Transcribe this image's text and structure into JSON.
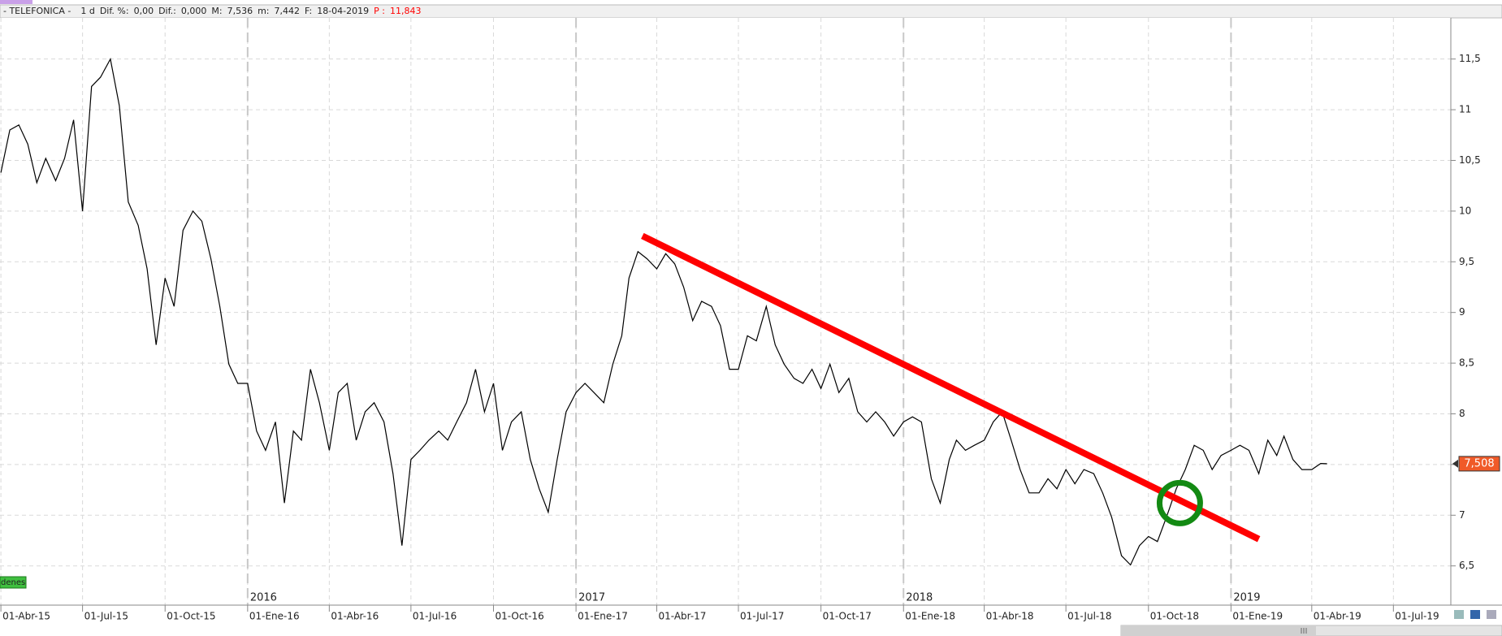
{
  "header": {
    "name": "- TELEFONICA -",
    "interval": "1 d",
    "fields": [
      {
        "label": "Dif. %:",
        "value": "0,00"
      },
      {
        "label": "Dif.:",
        "value": "0,000"
      },
      {
        "label": "M:",
        "value": "7,536"
      },
      {
        "label": "m:",
        "value": "7,442"
      },
      {
        "label": "F:",
        "value": "18-04-2019"
      },
      {
        "label": "P :",
        "value": "11,843",
        "color": "#ff0000"
      }
    ]
  },
  "badge": "denes",
  "chart_data": {
    "type": "line",
    "color": "#000000",
    "x": [
      "2015-04-01",
      "2015-04-11",
      "2015-04-21",
      "2015-05-01",
      "2015-05-11",
      "2015-05-21",
      "2015-06-01",
      "2015-06-11",
      "2015-06-21",
      "2015-07-01",
      "2015-07-11",
      "2015-07-21",
      "2015-08-01",
      "2015-08-11",
      "2015-08-21",
      "2015-09-01",
      "2015-09-11",
      "2015-09-21",
      "2015-10-01",
      "2015-10-11",
      "2015-10-21",
      "2015-11-01",
      "2015-11-11",
      "2015-11-21",
      "2015-12-01",
      "2015-12-11",
      "2015-12-21",
      "2016-01-01",
      "2016-01-11",
      "2016-01-21",
      "2016-02-01",
      "2016-02-11",
      "2016-02-21",
      "2016-03-01",
      "2016-03-11",
      "2016-03-21",
      "2016-04-01",
      "2016-04-11",
      "2016-04-21",
      "2016-05-01",
      "2016-05-11",
      "2016-05-21",
      "2016-06-01",
      "2016-06-11",
      "2016-06-21",
      "2016-07-01",
      "2016-07-11",
      "2016-07-21",
      "2016-08-01",
      "2016-08-11",
      "2016-08-21",
      "2016-09-01",
      "2016-09-11",
      "2016-09-21",
      "2016-10-01",
      "2016-10-11",
      "2016-10-21",
      "2016-11-01",
      "2016-11-11",
      "2016-11-21",
      "2016-12-01",
      "2016-12-11",
      "2016-12-21",
      "2017-01-01",
      "2017-01-11",
      "2017-01-21",
      "2017-02-01",
      "2017-02-11",
      "2017-02-21",
      "2017-03-01",
      "2017-03-11",
      "2017-03-21",
      "2017-04-01",
      "2017-04-11",
      "2017-04-21",
      "2017-05-01",
      "2017-05-11",
      "2017-05-21",
      "2017-06-01",
      "2017-06-11",
      "2017-06-21",
      "2017-07-01",
      "2017-07-11",
      "2017-07-21",
      "2017-08-01",
      "2017-08-11",
      "2017-08-21",
      "2017-09-01",
      "2017-09-11",
      "2017-09-21",
      "2017-10-01",
      "2017-10-11",
      "2017-10-21",
      "2017-11-01",
      "2017-11-11",
      "2017-11-21",
      "2017-12-01",
      "2017-12-11",
      "2017-12-21",
      "2018-01-01",
      "2018-01-11",
      "2018-01-21",
      "2018-02-01",
      "2018-02-11",
      "2018-02-21",
      "2018-03-01",
      "2018-03-11",
      "2018-03-21",
      "2018-04-01",
      "2018-04-11",
      "2018-04-21",
      "2018-05-01",
      "2018-05-11",
      "2018-05-21",
      "2018-06-01",
      "2018-06-11",
      "2018-06-21",
      "2018-07-01",
      "2018-07-11",
      "2018-07-21",
      "2018-08-01",
      "2018-08-11",
      "2018-08-21",
      "2018-09-01",
      "2018-09-11",
      "2018-09-21",
      "2018-10-01",
      "2018-10-11",
      "2018-10-21",
      "2018-11-01",
      "2018-11-11",
      "2018-11-21",
      "2018-12-01",
      "2018-12-11",
      "2018-12-21",
      "2019-01-01",
      "2019-01-11",
      "2019-01-21",
      "2019-02-01",
      "2019-02-11",
      "2019-02-21",
      "2019-03-01",
      "2019-03-11",
      "2019-03-21",
      "2019-04-01",
      "2019-04-11",
      "2019-04-18"
    ],
    "values": [
      10.38,
      10.8,
      10.85,
      10.66,
      10.28,
      10.52,
      10.3,
      10.52,
      10.9,
      10.0,
      11.23,
      11.32,
      11.5,
      11.04,
      10.09,
      9.86,
      9.43,
      8.68,
      9.34,
      9.06,
      9.81,
      10.0,
      9.9,
      9.53,
      9.06,
      8.49,
      8.3,
      8.3,
      7.83,
      7.64,
      7.92,
      7.12,
      7.83,
      7.74,
      8.44,
      8.11,
      7.64,
      8.21,
      8.3,
      7.74,
      8.02,
      8.11,
      7.92,
      7.41,
      6.7,
      7.55,
      7.64,
      7.74,
      7.83,
      7.74,
      7.92,
      8.11,
      8.44,
      8.02,
      8.3,
      7.64,
      7.92,
      8.02,
      7.55,
      7.26,
      7.03,
      7.55,
      8.02,
      8.21,
      8.3,
      8.21,
      8.11,
      8.49,
      8.77,
      9.34,
      9.6,
      9.53,
      9.43,
      9.58,
      9.48,
      9.25,
      8.92,
      9.11,
      9.06,
      8.87,
      8.44,
      8.44,
      8.77,
      8.72,
      9.06,
      8.68,
      8.49,
      8.35,
      8.3,
      8.44,
      8.25,
      8.49,
      8.21,
      8.35,
      8.02,
      7.92,
      8.02,
      7.92,
      7.78,
      7.92,
      7.97,
      7.92,
      7.36,
      7.12,
      7.55,
      7.74,
      7.64,
      7.69,
      7.74,
      7.92,
      8.02,
      7.74,
      7.45,
      7.22,
      7.22,
      7.36,
      7.26,
      7.45,
      7.31,
      7.45,
      7.41,
      7.22,
      6.98,
      6.6,
      6.51,
      6.7,
      6.79,
      6.74,
      6.98,
      7.26,
      7.45,
      7.69,
      7.64,
      7.45,
      7.59,
      7.64,
      7.69,
      7.64,
      7.41,
      7.74,
      7.59,
      7.78,
      7.55,
      7.45,
      7.45,
      7.51,
      7.508
    ],
    "xlim": [
      "2015-03-31",
      "2019-09-03"
    ],
    "ylim": [
      6.113,
      11.906
    ],
    "yticks": [
      {
        "value": 6.5,
        "label": "6,5"
      },
      7,
      {
        "value": 7.5,
        "label": "7,5"
      },
      8,
      {
        "value": 8.5,
        "label": "8,5"
      },
      9,
      {
        "value": 9.5,
        "label": "9,5"
      },
      10,
      {
        "value": 10.5,
        "label": "10,5"
      },
      11,
      {
        "value": 11.5,
        "label": "11,5"
      }
    ],
    "xticks": [
      {
        "value": "2015-04-01",
        "label": "01-Abr-15"
      },
      {
        "value": "2015-07-01",
        "label": "01-Jul-15"
      },
      {
        "value": "2015-10-01",
        "label": "01-Oct-15"
      },
      {
        "value": "2016-01-01",
        "label": "01-Ene-16"
      },
      {
        "value": "2016-04-01",
        "label": "01-Abr-16"
      },
      {
        "value": "2016-07-01",
        "label": "01-Jul-16"
      },
      {
        "value": "2016-10-01",
        "label": "01-Oct-16"
      },
      {
        "value": "2017-01-01",
        "label": "01-Ene-17"
      },
      {
        "value": "2017-04-01",
        "label": "01-Abr-17"
      },
      {
        "value": "2017-07-01",
        "label": "01-Jul-17"
      },
      {
        "value": "2017-10-01",
        "label": "01-Oct-17"
      },
      {
        "value": "2018-01-01",
        "label": "01-Ene-18"
      },
      {
        "value": "2018-04-01",
        "label": "01-Abr-18"
      },
      {
        "value": "2018-07-01",
        "label": "01-Jul-18"
      },
      {
        "value": "2018-10-01",
        "label": "01-Oct-18"
      },
      {
        "value": "2019-01-01",
        "label": "01-Ene-19"
      },
      {
        "value": "2019-04-01",
        "label": "01-Abr-19"
      },
      {
        "value": "2019-07-01",
        "label": "01-Jul-19"
      }
    ],
    "year_markers": [
      {
        "value": "2016-01-01",
        "label": "2016"
      },
      {
        "value": "2017-01-01",
        "label": "2017"
      },
      {
        "value": "2018-01-01",
        "label": "2018"
      },
      {
        "value": "2019-01-01",
        "label": "2019"
      }
    ],
    "grid": true,
    "last_value": {
      "value": 7.508,
      "label": "7,508",
      "color": "#f05a28"
    },
    "trendline": {
      "x": [
        "2017-03-16",
        "2019-02-01"
      ],
      "y": [
        9.755,
        6.764
      ],
      "color": "#ff0000"
    },
    "circle": {
      "x": "2018-11-05",
      "y": 7.12,
      "color": "#138a13"
    }
  }
}
